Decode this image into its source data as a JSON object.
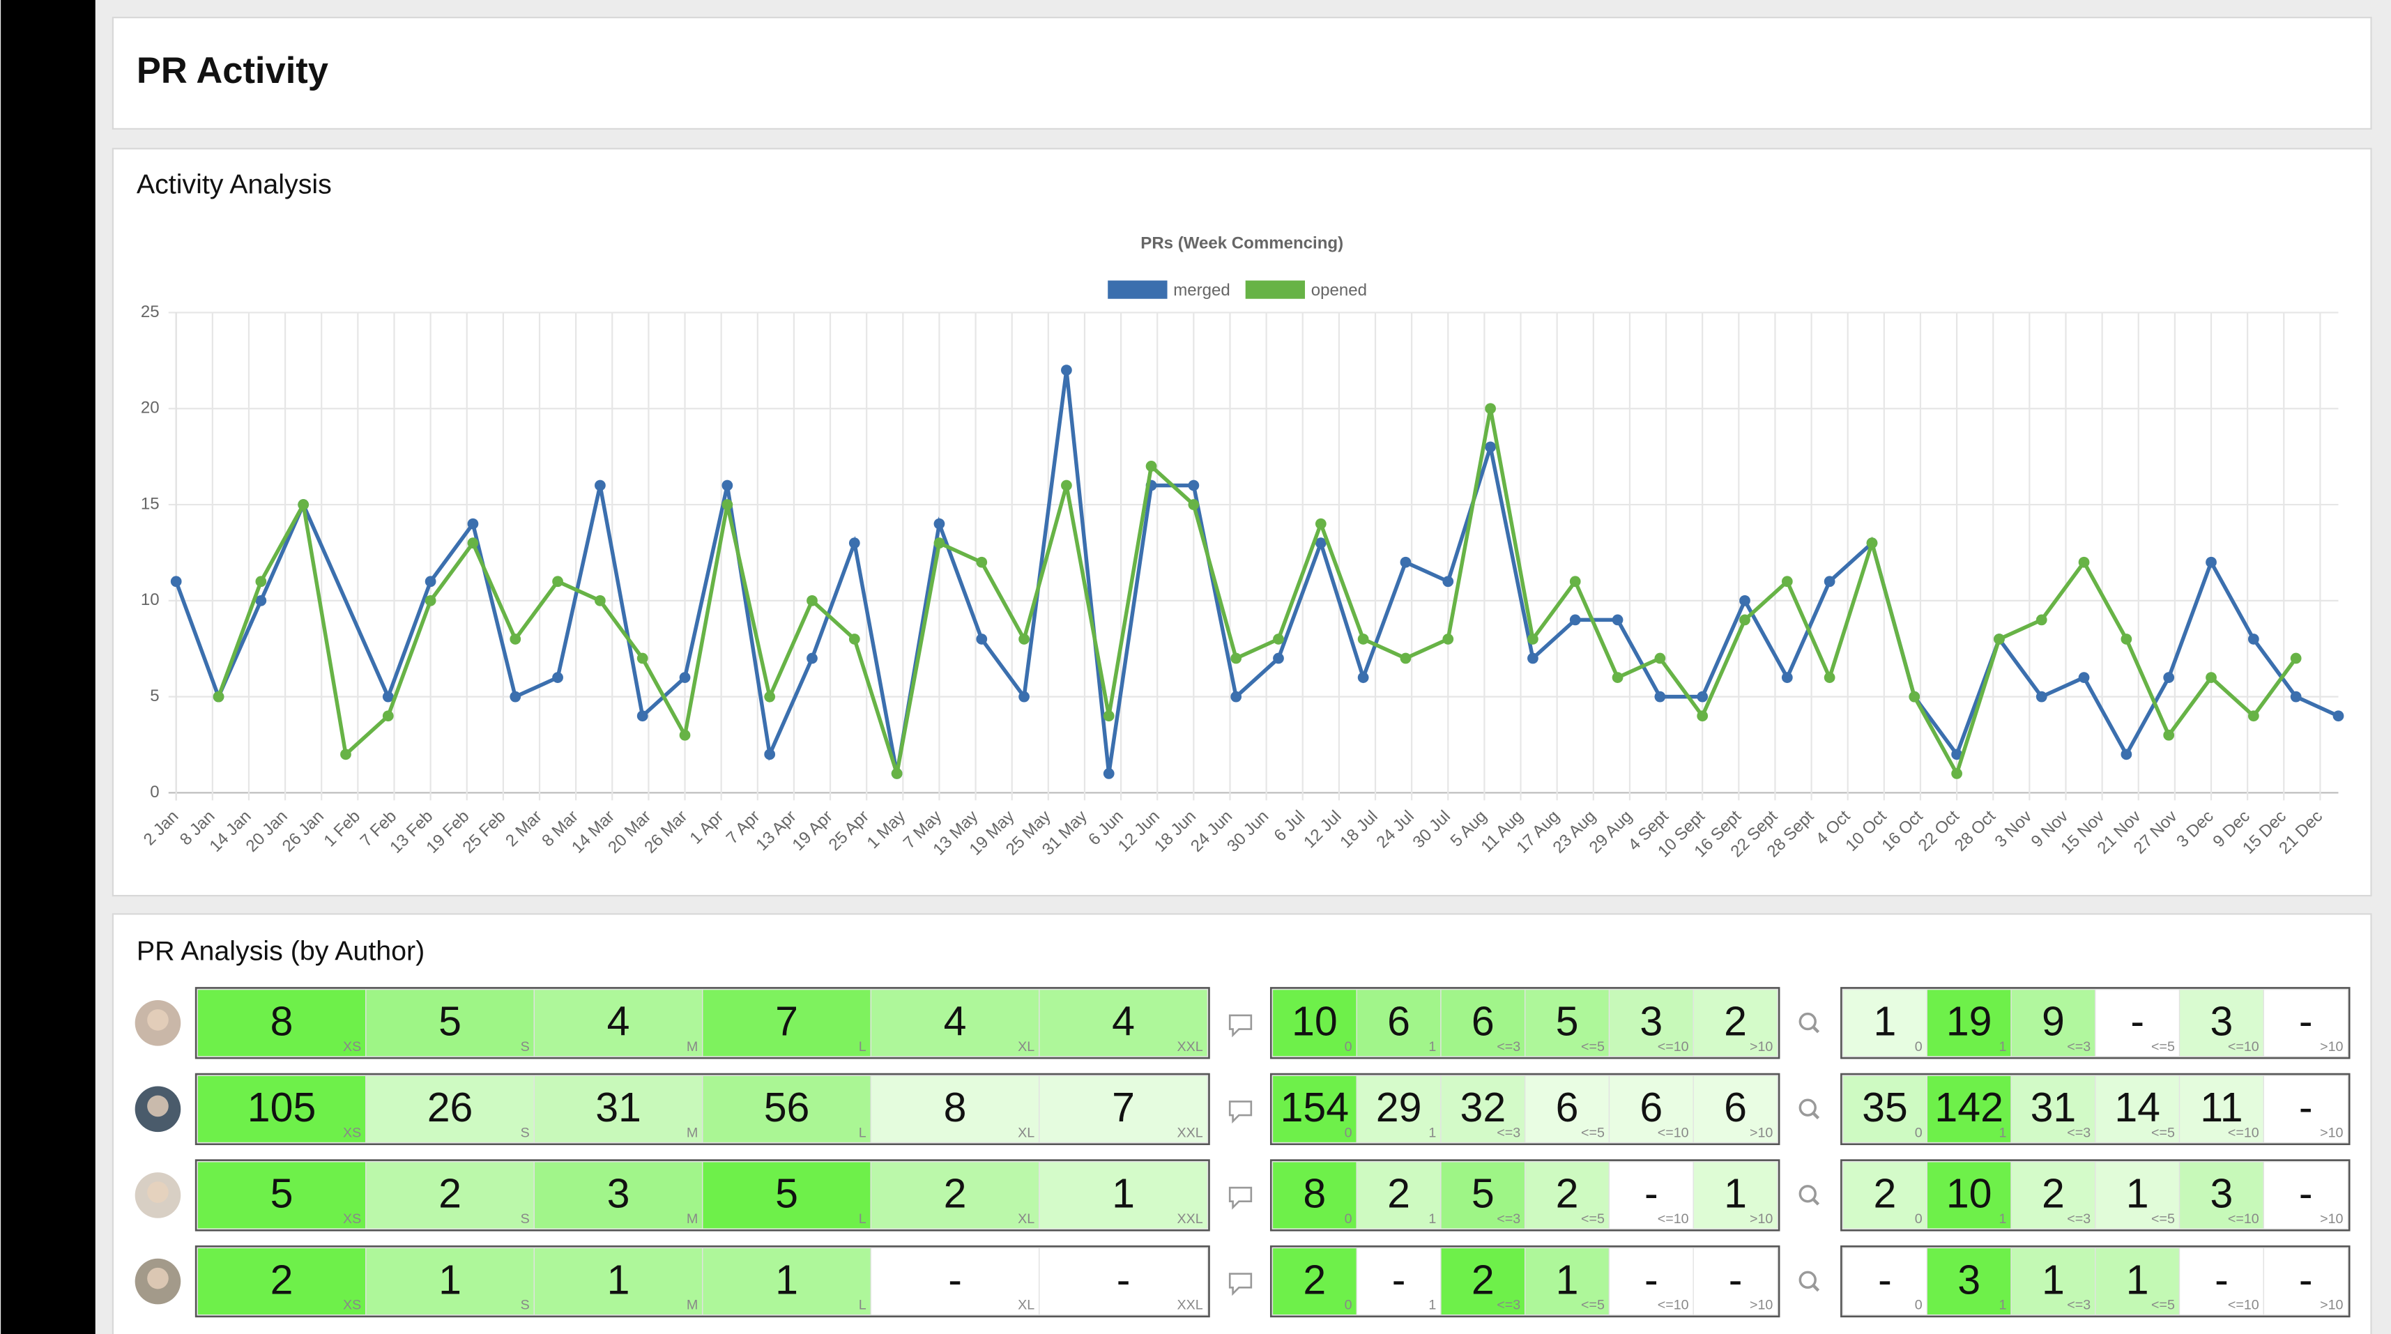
{
  "page": {
    "title": "PR Activity"
  },
  "activity": {
    "heading": "Activity Analysis"
  },
  "chart_data": {
    "type": "line",
    "title": "PRs (Week Commencing)",
    "xlim": [
      2,
      359
    ],
    "xticks": [
      {
        "value": 2,
        "label": "2 Jan"
      },
      {
        "value": 8,
        "label": "8 Jan"
      },
      {
        "value": 14,
        "label": "14 Jan"
      },
      {
        "value": 20,
        "label": "20 Jan"
      },
      {
        "value": 26,
        "label": "26 Jan"
      },
      {
        "value": 32,
        "label": "1 Feb"
      },
      {
        "value": 38,
        "label": "7 Feb"
      },
      {
        "value": 44,
        "label": "13 Feb"
      },
      {
        "value": 50,
        "label": "19 Feb"
      },
      {
        "value": 56,
        "label": "25 Feb"
      },
      {
        "value": 62,
        "label": "2 Mar"
      },
      {
        "value": 68,
        "label": "8 Mar"
      },
      {
        "value": 74,
        "label": "14 Mar"
      },
      {
        "value": 80,
        "label": "20 Mar"
      },
      {
        "value": 86,
        "label": "26 Mar"
      },
      {
        "value": 92,
        "label": "1 Apr"
      },
      {
        "value": 98,
        "label": "7 Apr"
      },
      {
        "value": 104,
        "label": "13 Apr"
      },
      {
        "value": 110,
        "label": "19 Apr"
      },
      {
        "value": 116,
        "label": "25 Apr"
      },
      {
        "value": 122,
        "label": "1 May"
      },
      {
        "value": 128,
        "label": "7 May"
      },
      {
        "value": 134,
        "label": "13 May"
      },
      {
        "value": 140,
        "label": "19 May"
      },
      {
        "value": 146,
        "label": "25 May"
      },
      {
        "value": 152,
        "label": "31 May"
      },
      {
        "value": 158,
        "label": "6 Jun"
      },
      {
        "value": 164,
        "label": "12 Jun"
      },
      {
        "value": 170,
        "label": "18 Jun"
      },
      {
        "value": 176,
        "label": "24 Jun"
      },
      {
        "value": 182,
        "label": "30 Jun"
      },
      {
        "value": 188,
        "label": "6 Jul"
      },
      {
        "value": 194,
        "label": "12 Jul"
      },
      {
        "value": 200,
        "label": "18 Jul"
      },
      {
        "value": 206,
        "label": "24 Jul"
      },
      {
        "value": 212,
        "label": "30 Jul"
      },
      {
        "value": 218,
        "label": "5 Aug"
      },
      {
        "value": 224,
        "label": "11 Aug"
      },
      {
        "value": 230,
        "label": "17 Aug"
      },
      {
        "value": 236,
        "label": "23 Aug"
      },
      {
        "value": 242,
        "label": "29 Aug"
      },
      {
        "value": 248,
        "label": "4 Sept"
      },
      {
        "value": 254,
        "label": "10 Sept"
      },
      {
        "value": 260,
        "label": "16 Sept"
      },
      {
        "value": 266,
        "label": "22 Sept"
      },
      {
        "value": 272,
        "label": "28 Sept"
      },
      {
        "value": 278,
        "label": "4 Oct"
      },
      {
        "value": 284,
        "label": "10 Oct"
      },
      {
        "value": 290,
        "label": "16 Oct"
      },
      {
        "value": 296,
        "label": "22 Oct"
      },
      {
        "value": 302,
        "label": "28 Oct"
      },
      {
        "value": 308,
        "label": "3 Nov"
      },
      {
        "value": 314,
        "label": "9 Nov"
      },
      {
        "value": 320,
        "label": "15 Nov"
      },
      {
        "value": 326,
        "label": "21 Nov"
      },
      {
        "value": 332,
        "label": "27 Nov"
      },
      {
        "value": 338,
        "label": "3 Dec"
      },
      {
        "value": 344,
        "label": "9 Dec"
      },
      {
        "value": 350,
        "label": "15 Dec"
      },
      {
        "value": 356,
        "label": "21 Dec"
      }
    ],
    "ylim": [
      0,
      25
    ],
    "yticks": [
      0,
      5,
      10,
      15,
      20,
      25
    ],
    "grid": true,
    "legend": "top",
    "series": [
      {
        "name": "merged",
        "color": "#3b6fae",
        "x": [
          2,
          9,
          16,
          23,
          37,
          44,
          51,
          58,
          65,
          72,
          79,
          86,
          93,
          100,
          107,
          114,
          121,
          128,
          135,
          142,
          149,
          156,
          163,
          170,
          177,
          184,
          191,
          198,
          205,
          212,
          219,
          226,
          233,
          240,
          247,
          254,
          261,
          268,
          275,
          282,
          289,
          296,
          303,
          310,
          317,
          324,
          331,
          338,
          345,
          352,
          359
        ],
        "values": [
          11,
          5,
          10,
          15,
          5,
          11,
          14,
          5,
          6,
          16,
          4,
          6,
          16,
          2,
          7,
          13,
          1,
          14,
          8,
          5,
          22,
          1,
          16,
          16,
          5,
          7,
          13,
          6,
          12,
          11,
          18,
          7,
          9,
          9,
          5,
          5,
          10,
          6,
          11,
          13,
          5,
          2,
          8,
          5,
          6,
          2,
          6,
          12,
          8,
          5,
          4
        ]
      },
      {
        "name": "opened",
        "color": "#67b346",
        "x": [
          9,
          16,
          23,
          30,
          37,
          44,
          51,
          58,
          65,
          72,
          79,
          86,
          93,
          100,
          107,
          114,
          121,
          128,
          135,
          142,
          149,
          156,
          163,
          170,
          177,
          184,
          191,
          198,
          205,
          212,
          219,
          226,
          233,
          240,
          247,
          254,
          261,
          268,
          275,
          282,
          289,
          296,
          303,
          310,
          317,
          324,
          331,
          338,
          345,
          352
        ],
        "values": [
          5,
          11,
          15,
          2,
          4,
          10,
          13,
          8,
          11,
          10,
          7,
          3,
          15,
          5,
          10,
          8,
          1,
          13,
          12,
          8,
          16,
          4,
          17,
          15,
          7,
          8,
          14,
          8,
          7,
          8,
          20,
          8,
          11,
          6,
          7,
          4,
          9,
          11,
          6,
          13,
          5,
          1,
          8,
          9,
          12,
          8,
          3,
          6,
          4,
          7
        ]
      }
    ]
  },
  "author_analysis": {
    "heading": "PR Analysis (by Author)",
    "size_labels": [
      "XS",
      "S",
      "M",
      "L",
      "XL",
      "XXL"
    ],
    "bucket_labels": [
      "0",
      "1",
      "<=3",
      "<=5",
      "<=10",
      ">10"
    ],
    "rows": [
      {
        "sizes": [
          8,
          5,
          4,
          7,
          4,
          4
        ],
        "comments": [
          10,
          6,
          6,
          5,
          3,
          2
        ],
        "reviews": [
          1,
          19,
          9,
          "-",
          3,
          "-"
        ]
      },
      {
        "sizes": [
          105,
          26,
          31,
          56,
          8,
          7
        ],
        "comments": [
          154,
          29,
          32,
          6,
          6,
          6
        ],
        "reviews": [
          35,
          142,
          31,
          14,
          11,
          "-"
        ]
      },
      {
        "sizes": [
          5,
          2,
          3,
          5,
          2,
          1
        ],
        "comments": [
          8,
          2,
          5,
          2,
          "-",
          1
        ],
        "reviews": [
          2,
          10,
          2,
          1,
          3,
          "-"
        ]
      },
      {
        "sizes": [
          2,
          1,
          1,
          1,
          "-",
          "-"
        ],
        "comments": [
          2,
          "-",
          2,
          1,
          "-",
          "-"
        ],
        "reviews": [
          "-",
          3,
          1,
          1,
          "-",
          "-"
        ]
      }
    ]
  }
}
